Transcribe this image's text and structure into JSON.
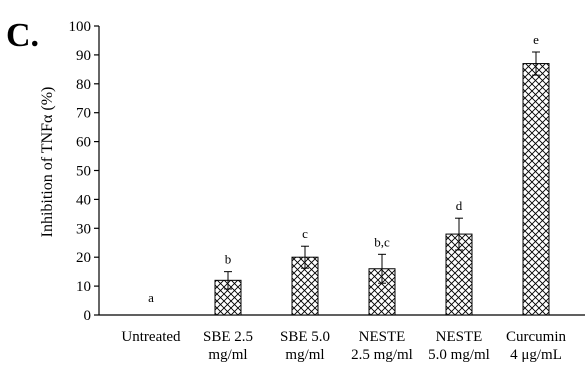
{
  "panel_label": "C.",
  "chart_data": {
    "type": "bar",
    "title": "",
    "xlabel": "",
    "ylabel": "Inhibition of TNFα (%)",
    "ylim": [
      0,
      100
    ],
    "yticks": [
      0,
      10,
      20,
      30,
      40,
      50,
      60,
      70,
      80,
      90,
      100
    ],
    "categories": [
      [
        "Untreated"
      ],
      [
        "SBE 2.5",
        "mg/ml"
      ],
      [
        "SBE 5.0",
        "mg/ml"
      ],
      [
        "NESTE",
        "2.5 mg/ml"
      ],
      [
        "NESTE",
        "5.0 mg/ml"
      ],
      [
        "Curcumin",
        "4 μg/mL"
      ]
    ],
    "values": [
      0,
      12,
      20,
      16,
      28,
      87
    ],
    "errors": [
      0,
      3,
      3.8,
      5,
      5.5,
      4
    ],
    "significance_labels": [
      "a",
      "b",
      "c",
      "b,c",
      "d",
      "e"
    ],
    "bar_pattern": "crosshatch",
    "grid": false,
    "legend": "none"
  }
}
